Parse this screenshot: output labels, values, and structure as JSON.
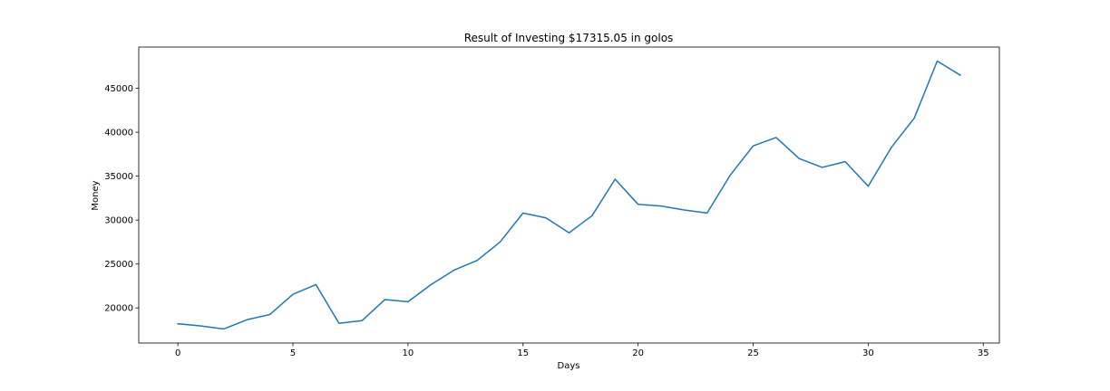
{
  "chart_data": {
    "type": "line",
    "title": "Result of Investing $17315.05 in golos",
    "xlabel": "Days",
    "ylabel": "Money",
    "xlim": [
      -1.7,
      35.7
    ],
    "ylim": [
      16000,
      49700
    ],
    "xticks": [
      0,
      5,
      10,
      15,
      20,
      25,
      30,
      35
    ],
    "yticks": [
      20000,
      25000,
      30000,
      35000,
      40000,
      45000
    ],
    "grid": false,
    "line_color": "#1f77b4",
    "series": [
      {
        "x": [
          0,
          1,
          2,
          3,
          4,
          5,
          6,
          7,
          8,
          9,
          10,
          11,
          12,
          13,
          14,
          15,
          16,
          17,
          18,
          19,
          20,
          21,
          22,
          23,
          24,
          25,
          26,
          27,
          28,
          29,
          30,
          31,
          32,
          33,
          34
        ],
        "values": [
          18200,
          17950,
          17600,
          18650,
          19250,
          21550,
          22650,
          18250,
          18550,
          20950,
          20700,
          22650,
          24300,
          25400,
          27500,
          30800,
          30250,
          28550,
          30500,
          34650,
          31800,
          31600,
          31150,
          30800,
          35100,
          38450,
          39400,
          37000,
          36000,
          36650,
          33850,
          38250,
          41600,
          48100,
          46500
        ]
      }
    ]
  }
}
